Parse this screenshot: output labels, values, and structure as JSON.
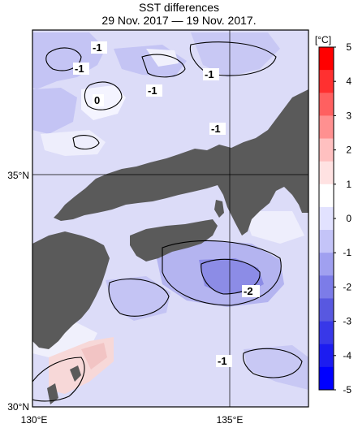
{
  "title": "SST differences",
  "period": "29 Nov. 2017 — 19 Nov. 2017.",
  "axes": {
    "lat_labels": [
      "35°N",
      "30°N"
    ],
    "lon_labels": [
      "130°E",
      "135°E"
    ]
  },
  "colorbar": {
    "unit": "[°C]",
    "ticks": [
      "5",
      "4",
      "3",
      "2",
      "1",
      "0",
      "-1",
      "-2",
      "-3",
      "-4",
      "-5"
    ],
    "colors": [
      "#ff0000",
      "#ff3030",
      "#ff6060",
      "#ff9090",
      "#ffc0c0",
      "#ffe2e2",
      "#ffffff",
      "#e2e2ff",
      "#c4c4f8",
      "#a0a0f0",
      "#7c7ce8",
      "#5858e0",
      "#3838e8",
      "#1c1cf0",
      "#0000ff"
    ]
  },
  "contour_labels": [
    "-1",
    "-1",
    "0",
    "-1",
    "-1",
    "-1",
    "-2",
    "-1"
  ],
  "colors": {
    "land": "#5a5a5a",
    "sea_base": "#dcdcf8",
    "sea_cold": "#b8b8f0",
    "sea_colder": "#8c8ce6",
    "sea_warm": "#f7d8d8"
  }
}
